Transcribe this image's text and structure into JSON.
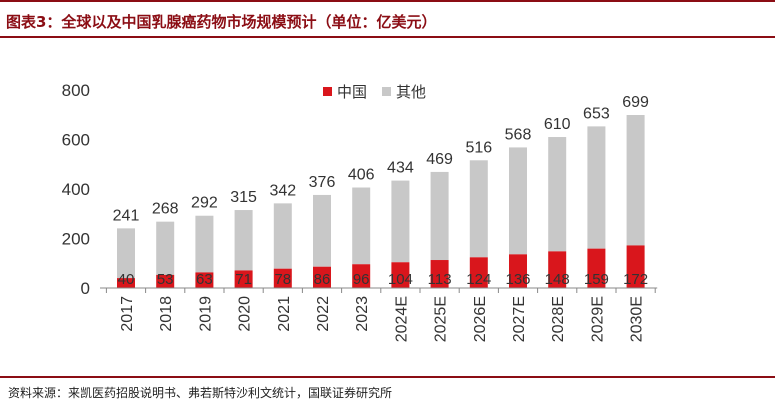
{
  "header": {
    "title": "图表3：全球以及中国乳腺癌药物市场规模预计（单位：亿美元）"
  },
  "footer": {
    "source": "资料来源：来凯医药招股说明书、弗若斯特沙利文统计，国联证券研究所"
  },
  "colors": {
    "china": "#d9161c",
    "others": "#c8c8c8",
    "brand": "#8b0d14"
  },
  "chart_data": {
    "type": "bar",
    "stacked": true,
    "categories": [
      "2017",
      "2018",
      "2019",
      "2020",
      "2021",
      "2022",
      "2023",
      "2024E",
      "2025E",
      "2026E",
      "2027E",
      "2028E",
      "2029E",
      "2030E"
    ],
    "series": [
      {
        "name": "中国",
        "values": [
          40,
          53,
          63,
          71,
          78,
          86,
          96,
          104,
          113,
          124,
          136,
          148,
          159,
          172
        ]
      },
      {
        "name": "其他",
        "values": [
          201,
          215,
          229,
          244,
          264,
          290,
          310,
          330,
          356,
          392,
          432,
          462,
          494,
          527
        ]
      }
    ],
    "china_labels": [
      "40",
      "53",
      "63",
      "71",
      "78",
      "86",
      "96",
      "104",
      "113",
      "124",
      "136",
      "148",
      "159",
      "172"
    ],
    "totals": [
      "241",
      "268",
      "292",
      "315",
      "342",
      "376",
      "406",
      "434",
      "469",
      "516",
      "568",
      "610",
      "653",
      "699"
    ],
    "yticks": [
      "0",
      "200",
      "400",
      "600",
      "800"
    ],
    "ylim": [
      0,
      800
    ],
    "legend": [
      "中国",
      "其他"
    ],
    "legend_position": "top-center",
    "grid": false
  }
}
